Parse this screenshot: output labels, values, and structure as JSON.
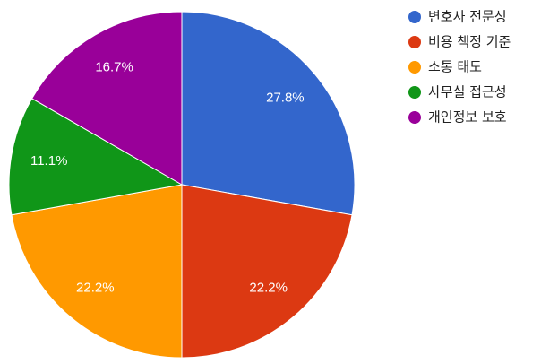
{
  "chart_data": {
    "type": "pie",
    "categories": [
      "변호사 전문성",
      "비용 책정 기준",
      "소통 태도",
      "사무실 접근성",
      "개인정보 보호"
    ],
    "values": [
      27.8,
      22.2,
      22.2,
      11.1,
      16.7
    ],
    "value_labels": [
      "27.8%",
      "22.2%",
      "22.2%",
      "11.1%",
      "16.7%"
    ],
    "colors": [
      "#3366cc",
      "#dc3912",
      "#ff9900",
      "#109618",
      "#990099"
    ],
    "legend": "right"
  }
}
